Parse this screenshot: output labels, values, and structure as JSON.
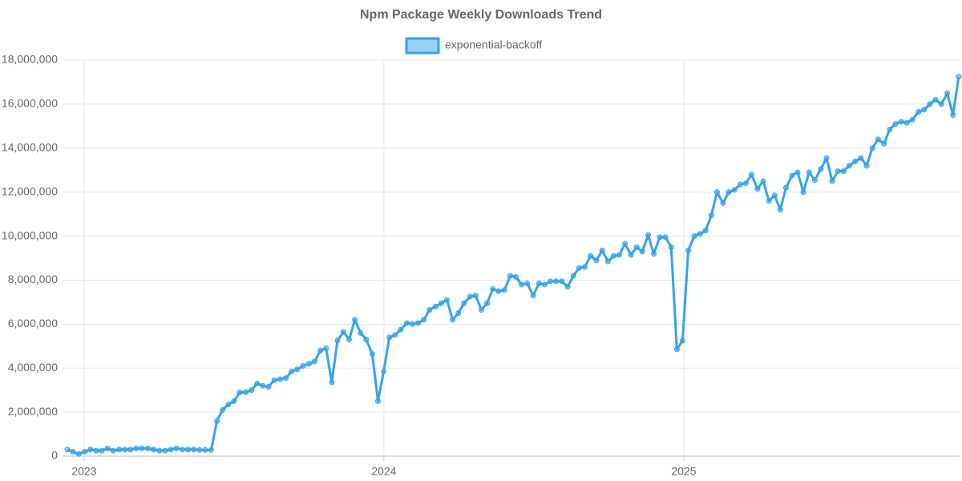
{
  "chart_data": {
    "type": "line",
    "title": "Npm Package Weekly Downloads Trend",
    "x": [
      2022.944,
      2022.963,
      2022.982,
      2023.002,
      2023.021,
      2023.04,
      2023.059,
      2023.078,
      2023.097,
      2023.117,
      2023.136,
      2023.155,
      2023.174,
      2023.193,
      2023.213,
      2023.232,
      2023.251,
      2023.27,
      2023.289,
      2023.308,
      2023.328,
      2023.347,
      2023.366,
      2023.385,
      2023.404,
      2023.424,
      2023.443,
      2023.462,
      2023.481,
      2023.5,
      2023.519,
      2023.539,
      2023.558,
      2023.577,
      2023.596,
      2023.615,
      2023.634,
      2023.654,
      2023.673,
      2023.692,
      2023.711,
      2023.73,
      2023.75,
      2023.769,
      2023.788,
      2023.807,
      2023.826,
      2023.845,
      2023.865,
      2023.884,
      2023.903,
      2023.922,
      2023.941,
      2023.961,
      2023.98,
      2023.999,
      2024.018,
      2024.037,
      2024.056,
      2024.076,
      2024.095,
      2024.114,
      2024.133,
      2024.152,
      2024.172,
      2024.191,
      2024.21,
      2024.229,
      2024.248,
      2024.267,
      2024.287,
      2024.306,
      2024.325,
      2024.344,
      2024.363,
      2024.382,
      2024.402,
      2024.421,
      2024.44,
      2024.459,
      2024.478,
      2024.498,
      2024.517,
      2024.536,
      2024.555,
      2024.574,
      2024.593,
      2024.613,
      2024.632,
      2024.651,
      2024.67,
      2024.689,
      2024.709,
      2024.728,
      2024.747,
      2024.766,
      2024.785,
      2024.804,
      2024.824,
      2024.843,
      2024.862,
      2024.881,
      2024.9,
      2024.92,
      2024.939,
      2024.958,
      2024.977,
      2024.996,
      2025.015,
      2025.035,
      2025.054,
      2025.073,
      2025.092,
      2025.111,
      2025.131,
      2025.15,
      2025.169,
      2025.188,
      2025.207,
      2025.226,
      2025.246,
      2025.265,
      2025.284,
      2025.303,
      2025.322,
      2025.341,
      2025.361,
      2025.38,
      2025.399,
      2025.418,
      2025.437,
      2025.457,
      2025.476,
      2025.495,
      2025.514,
      2025.533,
      2025.552,
      2025.572,
      2025.591,
      2025.61,
      2025.629,
      2025.648,
      2025.668,
      2025.687,
      2025.706,
      2025.725,
      2025.744,
      2025.763,
      2025.783,
      2025.802,
      2025.821,
      2025.84,
      2025.859,
      2025.879,
      2025.898,
      2025.917
    ],
    "series": [
      {
        "name": "exponential-backoff",
        "color": "#36a2eb",
        "fill": "rgba(54,162,235,0.5)",
        "values": [
          300000,
          200000,
          100000,
          200000,
          300000,
          250000,
          250000,
          350000,
          250000,
          300000,
          300000,
          300000,
          350000,
          350000,
          350000,
          300000,
          250000,
          250000,
          300000,
          350000,
          300000,
          300000,
          300000,
          280000,
          280000,
          280000,
          1600000,
          2100000,
          2350000,
          2500000,
          2900000,
          2900000,
          3000000,
          3300000,
          3200000,
          3150000,
          3450000,
          3500000,
          3550000,
          3850000,
          3950000,
          4100000,
          4200000,
          4300000,
          4800000,
          4900000,
          3350000,
          5250000,
          5650000,
          5300000,
          6200000,
          5600000,
          5300000,
          4650000,
          2500000,
          3850000,
          5400000,
          5500000,
          5750000,
          6050000,
          6000000,
          6050000,
          6200000,
          6650000,
          6800000,
          6950000,
          7100000,
          6200000,
          6500000,
          6950000,
          7250000,
          7300000,
          6650000,
          6950000,
          7600000,
          7500000,
          7550000,
          8200000,
          8150000,
          7800000,
          7850000,
          7300000,
          7850000,
          7800000,
          7950000,
          7950000,
          7950000,
          7700000,
          8200000,
          8550000,
          8600000,
          9100000,
          8900000,
          9350000,
          8850000,
          9100000,
          9150000,
          9650000,
          9150000,
          9500000,
          9300000,
          10050000,
          9200000,
          9950000,
          9950000,
          9500000,
          4850000,
          5250000,
          9350000,
          10000000,
          10100000,
          10250000,
          10950000,
          12000000,
          11500000,
          12000000,
          12100000,
          12350000,
          12400000,
          12800000,
          12150000,
          12500000,
          11600000,
          11850000,
          11200000,
          12200000,
          12750000,
          12900000,
          12000000,
          12900000,
          12550000,
          13050000,
          13550000,
          12500000,
          12950000,
          12950000,
          13200000,
          13400000,
          13550000,
          13200000,
          14000000,
          14400000,
          14200000,
          14850000,
          15100000,
          15200000,
          15150000,
          15300000,
          15650000,
          15750000,
          16000000,
          16200000,
          16000000,
          16500000,
          15500000,
          17250000
        ]
      }
    ],
    "xlim": [
      2022.928,
      2025.92
    ],
    "xticks": [
      2023,
      2024,
      2025
    ],
    "ylim": [
      0,
      18000000
    ],
    "yticks": [
      0,
      {
        "value": 2000000,
        "label": "2,000,000"
      },
      {
        "value": 4000000,
        "label": "4,000,000"
      },
      {
        "value": 6000000,
        "label": "6,000,000"
      },
      {
        "value": 8000000,
        "label": "8,000,000"
      },
      {
        "value": 10000000,
        "label": "10,000,000"
      },
      {
        "value": 12000000,
        "label": "12,000,000"
      },
      {
        "value": 14000000,
        "label": "14,000,000"
      },
      {
        "value": 16000000,
        "label": "16,000,000"
      },
      {
        "value": 18000000,
        "label": "18,000,000"
      }
    ],
    "grid": true,
    "legend": "top"
  }
}
